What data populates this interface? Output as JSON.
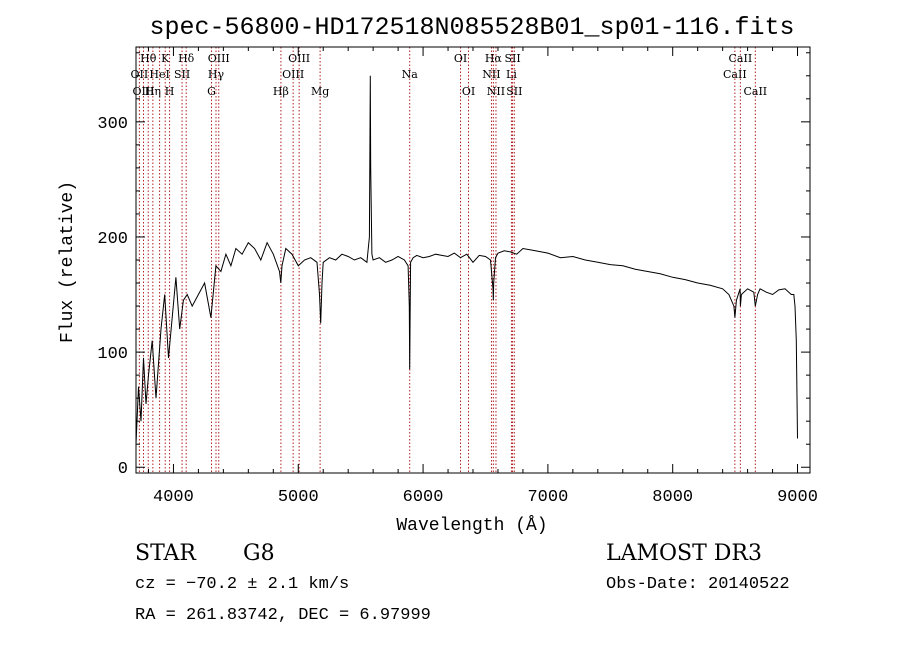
{
  "chart_data": {
    "type": "line",
    "title": "spec-56800-HD172518N085528B01_sp01-116.fits",
    "xlabel": "Wavelength (Å)",
    "ylabel": "Flux (relative)",
    "xlim": [
      3700,
      9100
    ],
    "ylim": [
      -5,
      365
    ],
    "x_ticks": [
      4000,
      5000,
      6000,
      7000,
      8000,
      9000
    ],
    "y_ticks": [
      0,
      100,
      200,
      300
    ],
    "grid": false,
    "series": [
      {
        "name": "flux",
        "x": [
          3700,
          3720,
          3740,
          3760,
          3780,
          3800,
          3830,
          3860,
          3900,
          3930,
          3960,
          3990,
          4020,
          4050,
          4080,
          4110,
          4150,
          4200,
          4250,
          4300,
          4340,
          4380,
          4420,
          4460,
          4500,
          4550,
          4600,
          4650,
          4700,
          4750,
          4800,
          4850,
          4860,
          4870,
          4900,
          4950,
          5000,
          5050,
          5100,
          5150,
          5170,
          5180,
          5190,
          5200,
          5250,
          5300,
          5350,
          5400,
          5450,
          5500,
          5550,
          5570,
          5577,
          5580,
          5590,
          5600,
          5650,
          5700,
          5750,
          5800,
          5850,
          5880,
          5890,
          5893,
          5896,
          5900,
          5920,
          5950,
          6000,
          6050,
          6100,
          6150,
          6200,
          6250,
          6300,
          6350,
          6400,
          6450,
          6500,
          6540,
          6560,
          6563,
          6566,
          6580,
          6600,
          6650,
          6700,
          6750,
          6800,
          6900,
          7000,
          7100,
          7200,
          7300,
          7400,
          7500,
          7600,
          7700,
          7800,
          7900,
          8000,
          8100,
          8200,
          8300,
          8400,
          8450,
          8490,
          8498,
          8510,
          8540,
          8542,
          8550,
          8600,
          8650,
          8662,
          8680,
          8700,
          8750,
          8800,
          8850,
          8900,
          8950,
          8970,
          8980,
          8990,
          9000
        ],
        "values": [
          20,
          70,
          40,
          95,
          55,
          80,
          110,
          60,
          120,
          150,
          95,
          130,
          165,
          120,
          145,
          150,
          140,
          150,
          160,
          130,
          175,
          170,
          185,
          175,
          190,
          185,
          195,
          190,
          180,
          195,
          185,
          170,
          160,
          175,
          190,
          185,
          175,
          180,
          182,
          178,
          150,
          125,
          160,
          178,
          182,
          180,
          185,
          183,
          180,
          182,
          178,
          200,
          340,
          260,
          185,
          180,
          182,
          178,
          180,
          183,
          180,
          175,
          140,
          85,
          130,
          178,
          182,
          184,
          182,
          183,
          185,
          184,
          183,
          186,
          182,
          185,
          178,
          184,
          183,
          180,
          155,
          145,
          160,
          182,
          186,
          188,
          187,
          185,
          190,
          188,
          186,
          182,
          183,
          180,
          178,
          176,
          175,
          172,
          170,
          168,
          165,
          163,
          160,
          158,
          155,
          150,
          140,
          130,
          145,
          155,
          140,
          150,
          155,
          152,
          140,
          150,
          155,
          152,
          150,
          154,
          155,
          150,
          150,
          140,
          110,
          25
        ]
      }
    ],
    "line_markers": [
      {
        "label": "Hθ",
        "wavelength": 3798,
        "row": 1
      },
      {
        "label": "OII",
        "wavelength": 3727,
        "row": 2
      },
      {
        "label": "OIII",
        "wavelength": 3760,
        "row": 3
      },
      {
        "label": "K",
        "wavelength": 3934,
        "row": 1
      },
      {
        "label": "HeI",
        "wavelength": 3889,
        "row": 2
      },
      {
        "label": "Hη",
        "wavelength": 3835,
        "row": 3
      },
      {
        "label": "Hδ",
        "wavelength": 4102,
        "row": 1
      },
      {
        "label": "SII",
        "wavelength": 4069,
        "row": 2
      },
      {
        "label": "H",
        "wavelength": 3969,
        "row": 3
      },
      {
        "label": "OIII",
        "wavelength": 4363,
        "row": 1
      },
      {
        "label": "Hγ",
        "wavelength": 4341,
        "row": 2
      },
      {
        "label": "G",
        "wavelength": 4305,
        "row": 3
      },
      {
        "label": "OIII",
        "wavelength": 5007,
        "row": 1
      },
      {
        "label": "OIII",
        "wavelength": 4959,
        "row": 2
      },
      {
        "label": "Hβ",
        "wavelength": 4861,
        "row": 3
      },
      {
        "label": "Mg",
        "wavelength": 5175,
        "row": 3
      },
      {
        "label": "Na",
        "wavelength": 5893,
        "row": 2
      },
      {
        "label": "OI",
        "wavelength": 6300,
        "row": 1
      },
      {
        "label": "OI",
        "wavelength": 6364,
        "row": 3
      },
      {
        "label": "Hα",
        "wavelength": 6563,
        "row": 1
      },
      {
        "label": "NII",
        "wavelength": 6548,
        "row": 2
      },
      {
        "label": "NII",
        "wavelength": 6584,
        "row": 3
      },
      {
        "label": "SII",
        "wavelength": 6717,
        "row": 1
      },
      {
        "label": "Li",
        "wavelength": 6708,
        "row": 2
      },
      {
        "label": "SII",
        "wavelength": 6731,
        "row": 3
      },
      {
        "label": "CaII",
        "wavelength": 8542,
        "row": 1
      },
      {
        "label": "CaII",
        "wavelength": 8498,
        "row": 2
      },
      {
        "label": "CaII",
        "wavelength": 8662,
        "row": 3
      }
    ]
  },
  "info": {
    "object_class": "STAR",
    "subclass": "G8",
    "survey": "LAMOST DR3",
    "redshift_text": "cz = −70.2 ± 2.1 km/s",
    "obs_date": "Obs-Date: 20140522",
    "coords": "RA = 261.83742, DEC =    6.97999"
  },
  "colors": {
    "line": "#000000",
    "marker": "#b22222",
    "text": "#000000"
  }
}
